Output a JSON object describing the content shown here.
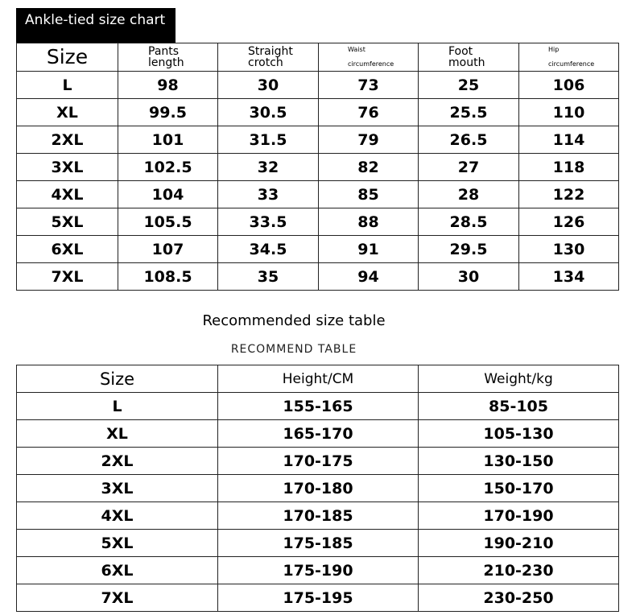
{
  "chart1": {
    "title": "Ankle-tied size chart",
    "headers": [
      "Size",
      "Pants length",
      "Straight crotch",
      "Waist|circumference",
      "Foot mouth",
      "Hip|circumference"
    ],
    "rows": [
      [
        "L",
        "98",
        "30",
        "73",
        "25",
        "106"
      ],
      [
        "XL",
        "99.5",
        "30.5",
        "76",
        "25.5",
        "110"
      ],
      [
        "2XL",
        "101",
        "31.5",
        "79",
        "26.5",
        "114"
      ],
      [
        "3XL",
        "102.5",
        "32",
        "82",
        "27",
        "118"
      ],
      [
        "4XL",
        "104",
        "33",
        "85",
        "28",
        "122"
      ],
      [
        "5XL",
        "105.5",
        "33.5",
        "88",
        "28.5",
        "126"
      ],
      [
        "6XL",
        "107",
        "34.5",
        "91",
        "29.5",
        "130"
      ],
      [
        "7XL",
        "108.5",
        "35",
        "94",
        "30",
        "134"
      ]
    ]
  },
  "chart2": {
    "title": "Recommended size table",
    "subtitle": "RECOMMEND  TABLE",
    "headers": [
      "Size",
      "Height/CM",
      "Weight/kg"
    ],
    "rows": [
      [
        "L",
        "155-165",
        "85-105"
      ],
      [
        "XL",
        "165-170",
        "105-130"
      ],
      [
        "2XL",
        "170-175",
        "130-150"
      ],
      [
        "3XL",
        "170-180",
        "150-170"
      ],
      [
        "4XL",
        "170-185",
        "170-190"
      ],
      [
        "5XL",
        "175-185",
        "190-210"
      ],
      [
        "6XL",
        "175-190",
        "210-230"
      ],
      [
        "7XL",
        "175-195",
        "230-250"
      ]
    ]
  }
}
